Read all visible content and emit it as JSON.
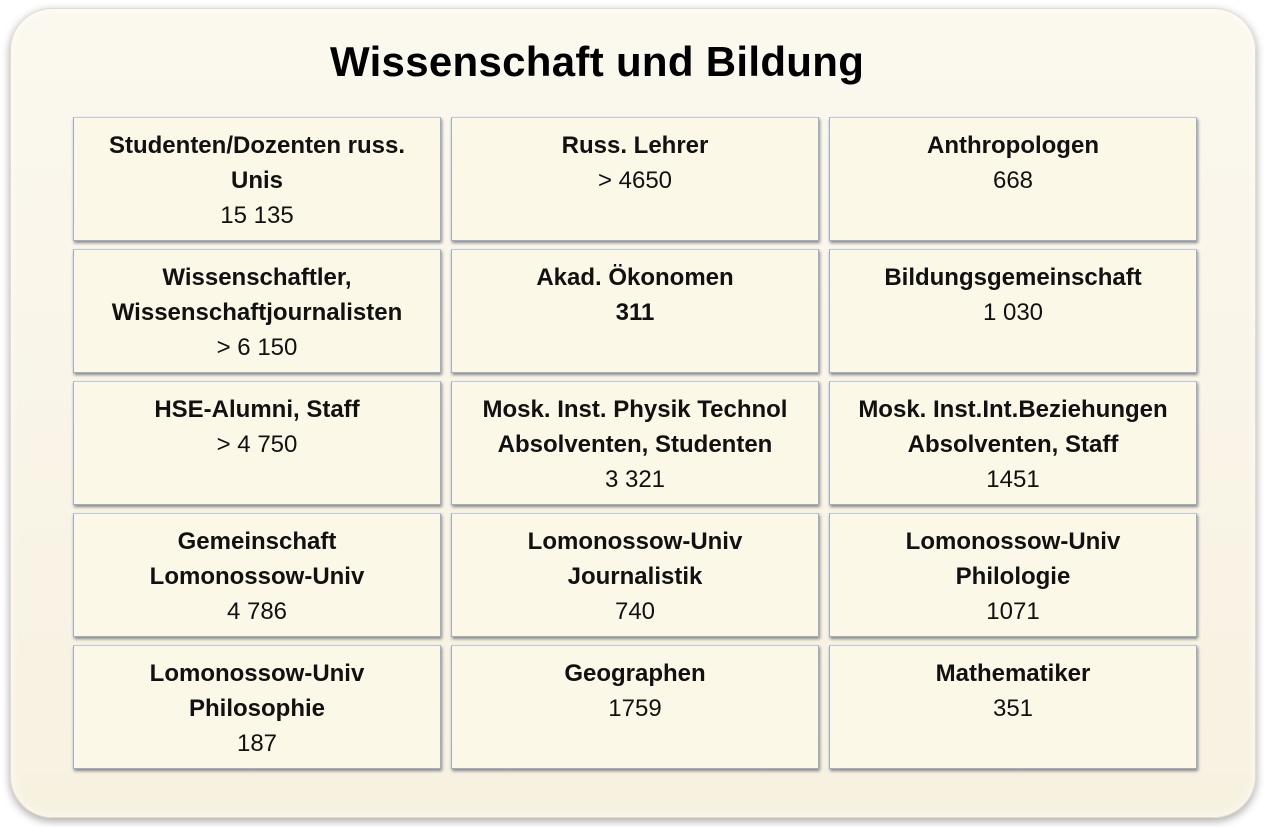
{
  "title": "Wissenschaft und Bildung",
  "cells": [
    {
      "lines": [
        "Studenten/Dozenten russ.",
        "Unis"
      ],
      "value": "15 135"
    },
    {
      "lines": [
        "Russ. Lehrer"
      ],
      "value": "> 4650"
    },
    {
      "lines": [
        "Anthropologen"
      ],
      "value": "668"
    },
    {
      "lines": [
        "Wissenschaftler,",
        "Wissenschaftjournalisten"
      ],
      "value": "> 6 150"
    },
    {
      "lines": [
        "Akad. Ökonomen"
      ],
      "value": "311"
    },
    {
      "lines": [
        "Bildungsgemeinschaft"
      ],
      "value": "1 030"
    },
    {
      "lines": [
        "HSE-Alumni, Staff"
      ],
      "value": "> 4 750"
    },
    {
      "lines": [
        "Mosk. Inst. Physik Technol",
        "Absolventen, Studenten"
      ],
      "value": "3 321"
    },
    {
      "lines": [
        "Mosk. Inst.Int.Beziehungen",
        "Absolventen, Staff"
      ],
      "value": "1451"
    },
    {
      "lines": [
        "Gemeinschaft",
        "Lomonossow-Univ"
      ],
      "value": "4 786"
    },
    {
      "lines": [
        "Lomonossow-Univ",
        "Journalistik"
      ],
      "value": "740"
    },
    {
      "lines": [
        "Lomonossow-Univ",
        "Philologie"
      ],
      "value": "1071"
    },
    {
      "lines": [
        "Lomonossow-Univ",
        "Philosophie"
      ],
      "value": "187"
    },
    {
      "lines": [
        "Geographen"
      ],
      "value": "1759"
    },
    {
      "lines": [
        "Mathematiker"
      ],
      "value": "351"
    }
  ]
}
